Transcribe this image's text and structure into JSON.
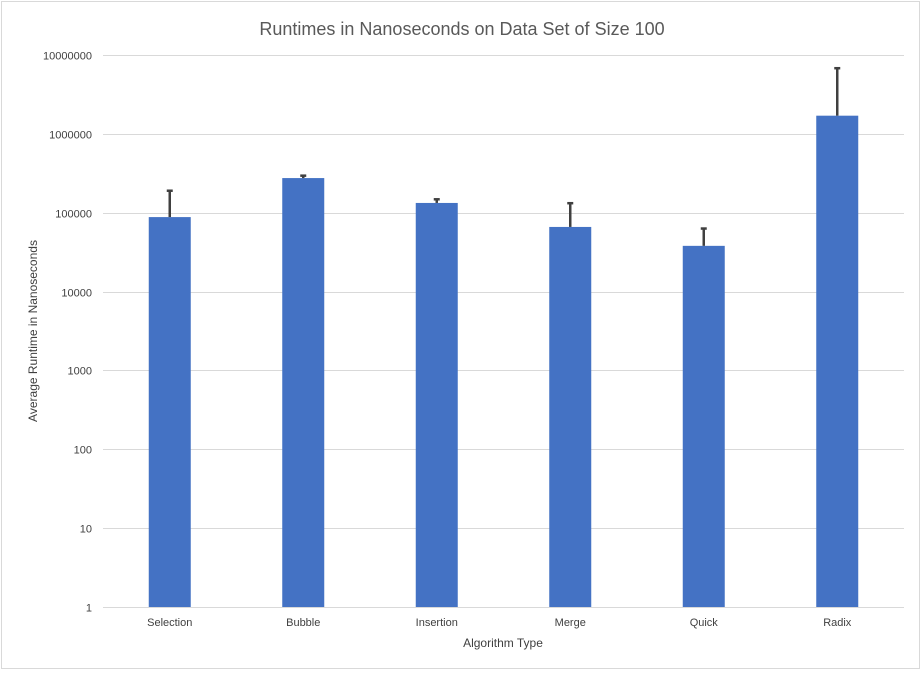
{
  "chart_data": {
    "type": "bar",
    "title": "Runtimes in Nanoseconds on Data Set of Size 100",
    "xlabel": "Algorithm Type",
    "ylabel": "Average Runtime in Nanoseconds",
    "yscale": "log",
    "ylim": [
      1,
      10000000
    ],
    "yticks": [
      "1",
      "10",
      "100",
      "1000",
      "10000",
      "100000",
      "1000000",
      "10000000"
    ],
    "grid": true,
    "legend": "none",
    "categories": [
      "Selection",
      "Bubble",
      "Insertion",
      "Merge",
      "Quick",
      "Radix"
    ],
    "series": [
      {
        "values": [
          88000,
          275000,
          133000,
          66000,
          38000,
          1700000
        ],
        "error_upper": [
          190000,
          295000,
          148000,
          132000,
          63000,
          6800000
        ],
        "color": "#4472C4"
      }
    ],
    "errorbar_color": "#404040",
    "gridline_color": "#D9D9D9"
  }
}
